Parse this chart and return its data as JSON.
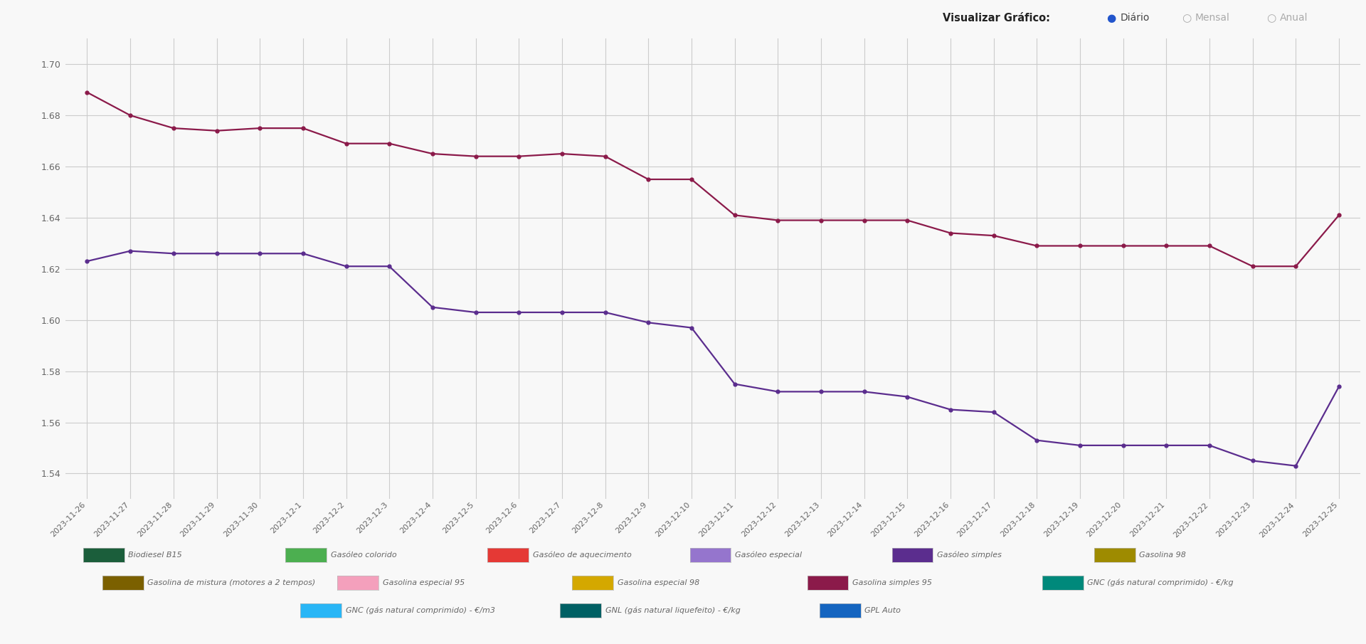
{
  "background_color": "#f8f8f8",
  "grid_color": "#cccccc",
  "dates": [
    "2023-11-26",
    "2023-11-27",
    "2023-11-28",
    "2023-11-29",
    "2023-11-30",
    "2023-12-1",
    "2023-12-2",
    "2023-12-3",
    "2023-12-4",
    "2023-12-5",
    "2023-12-6",
    "2023-12-7",
    "2023-12-8",
    "2023-12-9",
    "2023-12-10",
    "2023-12-11",
    "2023-12-12",
    "2023-12-13",
    "2023-12-14",
    "2023-12-15",
    "2023-12-16",
    "2023-12-17",
    "2023-12-18",
    "2023-12-19",
    "2023-12-20",
    "2023-12-21",
    "2023-12-22",
    "2023-12-23",
    "2023-12-24",
    "2023-12-25"
  ],
  "gasolina_simples_95": [
    1.689,
    1.68,
    1.675,
    1.674,
    1.675,
    1.675,
    1.669,
    1.669,
    1.665,
    1.664,
    1.664,
    1.665,
    1.664,
    1.655,
    1.655,
    1.641,
    1.639,
    1.639,
    1.639,
    1.639,
    1.634,
    1.633,
    1.629,
    1.629,
    1.629,
    1.629,
    1.629,
    1.621,
    1.621,
    1.641
  ],
  "gasleo_simples": [
    1.623,
    1.627,
    1.626,
    1.626,
    1.626,
    1.626,
    1.621,
    1.621,
    1.605,
    1.603,
    1.603,
    1.603,
    1.603,
    1.599,
    1.597,
    1.575,
    1.572,
    1.572,
    1.572,
    1.57,
    1.565,
    1.564,
    1.553,
    1.551,
    1.551,
    1.551,
    1.551,
    1.545,
    1.543,
    1.574
  ],
  "gasolina_simples_95_color": "#8B1A4A",
  "gasleo_simples_color": "#5B2D8E",
  "ylim": [
    1.53,
    1.71
  ],
  "yticks": [
    1.54,
    1.56,
    1.58,
    1.6,
    1.62,
    1.64,
    1.66,
    1.68,
    1.7
  ],
  "legend_items": [
    {
      "label": "Biodiesel B15",
      "color": "#1B5E3B"
    },
    {
      "label": "Gasóleo colorido",
      "color": "#4CAF50"
    },
    {
      "label": "Gasóleo de aquecimento",
      "color": "#E53935"
    },
    {
      "label": "Gasóleo especial",
      "color": "#9575CD"
    },
    {
      "label": "Gasóleo simples",
      "color": "#5B2D8E"
    },
    {
      "label": "Gasolina 98",
      "color": "#9E8B00"
    },
    {
      "label": "Gasolina de mistura (motores a 2 tempos)",
      "color": "#7B6000"
    },
    {
      "label": "Gasolina especial 95",
      "color": "#F4A0BC"
    },
    {
      "label": "Gasolina especial 98",
      "color": "#D4A800"
    },
    {
      "label": "Gasolina simples 95",
      "color": "#8B1A4A"
    },
    {
      "label": "GNC (gás natural comprimido) - €/kg",
      "color": "#00897B"
    },
    {
      "label": "GNC (gás natural comprimido) - €/m3",
      "color": "#29B6F6"
    },
    {
      "label": "GNL (gás natural liquefeito) - €/kg",
      "color": "#006064"
    },
    {
      "label": "GPL Auto",
      "color": "#1565C0"
    }
  ],
  "legend_row1": [
    0,
    1,
    2,
    3,
    4,
    5
  ],
  "legend_row2": [
    6,
    7,
    8,
    9,
    10
  ],
  "legend_row3": [
    11,
    12,
    13
  ]
}
